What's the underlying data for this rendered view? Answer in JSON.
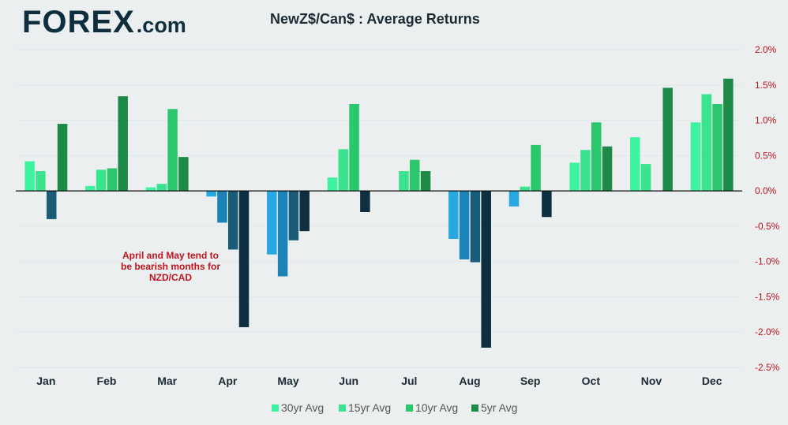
{
  "header": {
    "logo_brand": "FOREX",
    "logo_tld": ".com",
    "title": "NewZ$/Can$ : Average Returns"
  },
  "colors": {
    "background": "#ebeff0",
    "logo": "#0f2e3d",
    "axis_text": "#c0141e",
    "positive": [
      "#3ef3a0",
      "#3ae38e",
      "#2bc76d",
      "#1e8a48"
    ],
    "negative": [
      "#27a8e0",
      "#1b83b8",
      "#1a5b78",
      "#0e2f40"
    ]
  },
  "chart_data": {
    "type": "bar",
    "title": "NewZ$/Can$ : Average Returns",
    "xlabel": "",
    "ylabel": "",
    "categories": [
      "Jan",
      "Feb",
      "Mar",
      "Apr",
      "May",
      "Jun",
      "Jul",
      "Aug",
      "Sep",
      "Oct",
      "Nov",
      "Dec"
    ],
    "series": [
      {
        "name": "30yr Avg",
        "values": [
          0.42,
          0.07,
          0.05,
          -0.08,
          -0.9,
          0.19,
          0.0,
          -0.68,
          -0.22,
          0.4,
          0.76,
          0.97
        ]
      },
      {
        "name": "15yr Avg",
        "values": [
          0.28,
          0.3,
          0.1,
          -0.45,
          -1.21,
          0.59,
          0.28,
          -0.97,
          0.06,
          0.58,
          0.38,
          1.37
        ]
      },
      {
        "name": "10yr Avg",
        "values": [
          -0.4,
          0.32,
          1.16,
          -0.83,
          -0.7,
          1.23,
          0.44,
          -1.01,
          0.65,
          0.97,
          0.0,
          1.23
        ]
      },
      {
        "name": "5yr Avg",
        "values": [
          0.95,
          1.34,
          0.48,
          -1.93,
          -0.57,
          -0.3,
          0.28,
          -2.22,
          -0.37,
          0.63,
          1.46,
          1.59
        ]
      }
    ],
    "ylim": [
      -2.5,
      2.0
    ],
    "yticks": [
      "2.0%",
      "1.5%",
      "1.0%",
      "0.5%",
      "0.0%",
      "-0.5%",
      "-1.0%",
      "-1.5%",
      "-2.0%",
      "-2.5%"
    ],
    "ytick_values": [
      2.0,
      1.5,
      1.0,
      0.5,
      0.0,
      -0.5,
      -1.0,
      -1.5,
      -2.0,
      -2.5
    ],
    "grid": "horizontal",
    "legend_position": "bottom-center",
    "annotation": [
      "April and May tend to",
      "be bearish months for",
      "NZD/CAD"
    ]
  }
}
